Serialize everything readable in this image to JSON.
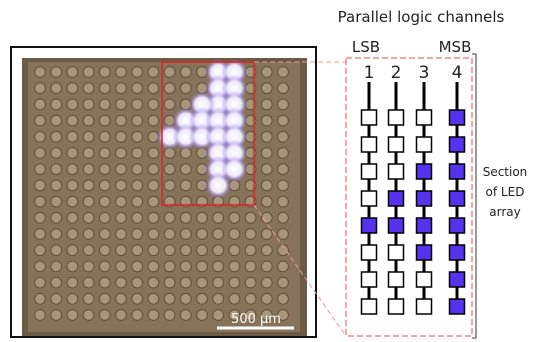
{
  "header": {
    "title": "Parallel logic channels"
  },
  "bits": {
    "lsb_label": "LSB",
    "msb_label": "MSB"
  },
  "channels": [
    {
      "label": "1",
      "states": [
        0,
        0,
        0,
        0,
        1,
        0,
        0,
        0
      ]
    },
    {
      "label": "2",
      "states": [
        0,
        0,
        0,
        1,
        1,
        0,
        0,
        0
      ]
    },
    {
      "label": "3",
      "states": [
        0,
        0,
        1,
        1,
        1,
        1,
        0,
        0
      ]
    },
    {
      "label": "4",
      "states": [
        1,
        1,
        1,
        1,
        1,
        1,
        1,
        1
      ]
    }
  ],
  "side_note": {
    "lines": [
      "Section",
      "of LED",
      "array"
    ]
  },
  "photo": {
    "scale_bar_label": "500 µm",
    "grid_rows": 16,
    "grid_cols": 16
  },
  "colors": {
    "led_on": "#5533ee",
    "led_off": "#ffffff",
    "highlight_outline": "#dd2222",
    "section_outline": "#ee8888",
    "glow": "#c8c0ff"
  }
}
